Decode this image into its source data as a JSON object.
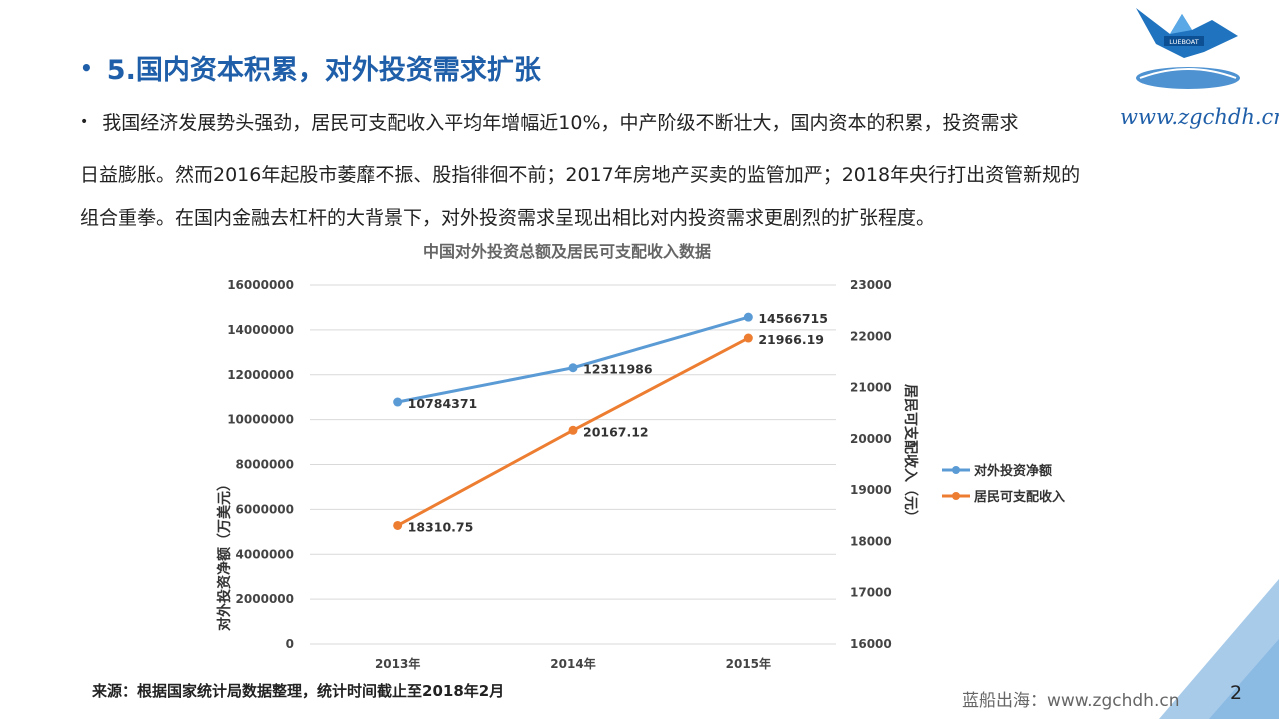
{
  "header": {
    "bullet": "•",
    "title": "5.国内资本积累，对外投资需求扩张",
    "watermark_url": "www.zgchdh.cn",
    "logo_text": "LUEBOAT"
  },
  "body": {
    "bullet": "•",
    "line1": "我国经济发展势头强劲，居民可支配收入平均年增幅近10%，中产阶级不断壮大，国内资本的积累，投资需求",
    "line2": "日益膨胀。然而2016年起股市萎靡不振、股指徘徊不前；2017年房地产买卖的监管加严；2018年央行打出资管新规的",
    "line3": "组合重拳。在国内金融去杠杆的大背景下，对外投资需求呈现出相比对内投资需求更剧烈的扩张程度。"
  },
  "chart_data": {
    "type": "line",
    "title": "中国对外投资总额及居民可支配收入数据",
    "categories": [
      "2013年",
      "2014年",
      "2015年"
    ],
    "ylabel_left": "对外投资净额（万美元）",
    "ylabel_right": "居民可支配收入（元）",
    "ylim_left": [
      0,
      16000000
    ],
    "ylim_right": [
      16000,
      23000
    ],
    "yticks_left": [
      "16000000",
      "14000000",
      "12000000",
      "10000000",
      "8000000",
      "6000000",
      "4000000",
      "2000000",
      "0"
    ],
    "yticks_right": [
      "23000",
      "22000",
      "21000",
      "20000",
      "19000",
      "18000",
      "17000",
      "16000"
    ],
    "grid": true,
    "legend_position": "right",
    "series": [
      {
        "name": "对外投资净额",
        "axis": "left",
        "color": "#5b9bd5",
        "values": [
          10784371,
          12311986,
          14566715
        ],
        "labels": [
          "10784371",
          "12311986",
          "14566715"
        ]
      },
      {
        "name": "居民可支配收入",
        "axis": "right",
        "color": "#ed7d31",
        "values": [
          18310.75,
          20167.12,
          21966.19
        ],
        "labels": [
          "18310.75",
          "20167.12",
          "21966.19"
        ]
      }
    ]
  },
  "footer": {
    "source": "来源：根据国家统计局数据整理，统计时间截止至2018年2月",
    "brand": "蓝船出海：www.zgchdh.cn",
    "page_number": "2"
  }
}
